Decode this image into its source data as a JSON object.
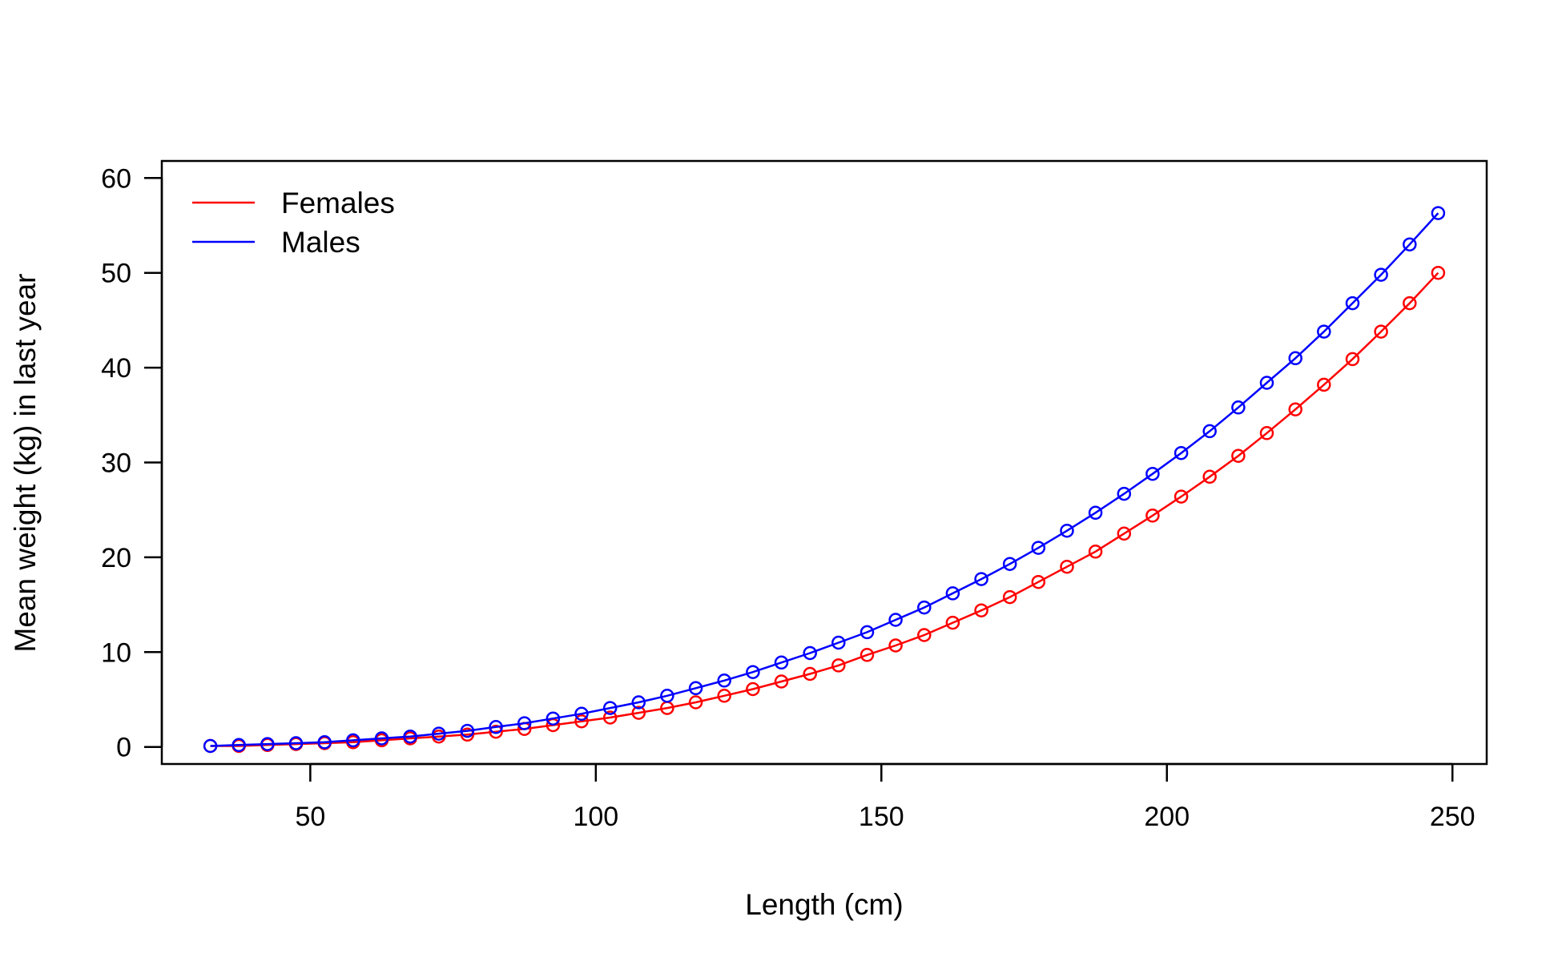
{
  "chart_data": {
    "type": "line",
    "title": "",
    "xlabel": "Length (cm)",
    "ylabel": "Mean weight (kg) in last year",
    "xlim": [
      24,
      256
    ],
    "ylim": [
      -1.8,
      61.8
    ],
    "xticks": [
      50,
      100,
      150,
      200,
      250
    ],
    "yticks": [
      0,
      10,
      20,
      30,
      40,
      50,
      60
    ],
    "grid": false,
    "legend_position": "top-left",
    "x": [
      32.5,
      37.5,
      42.5,
      47.5,
      52.5,
      57.5,
      62.5,
      67.5,
      72.5,
      77.5,
      82.5,
      87.5,
      92.5,
      97.5,
      102.5,
      107.5,
      112.5,
      117.5,
      122.5,
      127.5,
      132.5,
      137.5,
      142.5,
      147.5,
      152.5,
      157.5,
      162.5,
      167.5,
      172.5,
      177.5,
      182.5,
      187.5,
      192.5,
      197.5,
      202.5,
      207.5,
      212.5,
      217.5,
      222.5,
      227.5,
      232.5,
      237.5,
      242.5,
      247.5
    ],
    "series": [
      {
        "name": "Females",
        "color": "#ff0000",
        "values": [
          0.1,
          0.1,
          0.2,
          0.3,
          0.4,
          0.5,
          0.7,
          0.9,
          1.1,
          1.3,
          1.6,
          1.9,
          2.3,
          2.7,
          3.1,
          3.6,
          4.1,
          4.7,
          5.4,
          6.1,
          6.9,
          7.7,
          8.6,
          9.7,
          10.7,
          11.8,
          13.1,
          14.4,
          15.8,
          17.4,
          19.0,
          20.6,
          22.5,
          24.4,
          26.4,
          28.5,
          30.7,
          33.1,
          35.6,
          38.2,
          40.9,
          43.8,
          46.8,
          50.0
        ]
      },
      {
        "name": "Males",
        "color": "#0000ff",
        "values": [
          0.1,
          0.2,
          0.3,
          0.4,
          0.5,
          0.7,
          0.9,
          1.1,
          1.4,
          1.7,
          2.1,
          2.5,
          3.0,
          3.5,
          4.1,
          4.7,
          5.4,
          6.2,
          7.0,
          7.9,
          8.9,
          9.9,
          11.0,
          12.1,
          13.4,
          14.7,
          16.2,
          17.7,
          19.3,
          21.0,
          22.8,
          24.7,
          26.7,
          28.8,
          31.0,
          33.3,
          35.8,
          38.4,
          41.0,
          43.8,
          46.8,
          49.8,
          53.0,
          56.3
        ]
      }
    ]
  }
}
